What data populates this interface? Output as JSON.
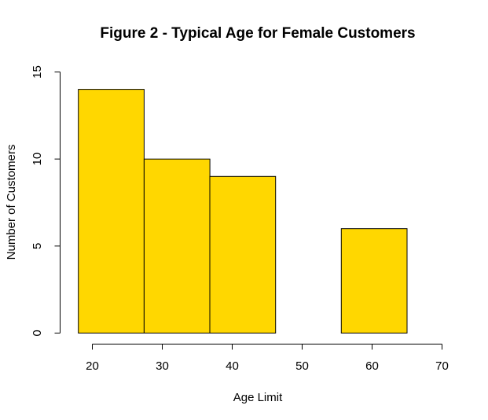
{
  "chart_data": {
    "type": "histogram",
    "title": "Figure 2 - Typical Age for Female Customers",
    "xlabel": "Age Limit",
    "ylabel": "Number of Customers",
    "bins": [
      {
        "start": 18,
        "end": 27.4,
        "count": 14
      },
      {
        "start": 27.4,
        "end": 36.8,
        "count": 10
      },
      {
        "start": 36.8,
        "end": 46.2,
        "count": 9
      },
      {
        "start": 46.2,
        "end": 55.6,
        "count": 0
      },
      {
        "start": 55.6,
        "end": 65,
        "count": 6
      }
    ],
    "x_ticks": [
      20,
      30,
      40,
      50,
      60,
      70
    ],
    "y_ticks": [
      0,
      5,
      10,
      15
    ],
    "xlim": [
      20,
      70
    ],
    "ylim": [
      0,
      15
    ],
    "bar_color": "#FFD700",
    "grid": false,
    "legend": "none"
  }
}
